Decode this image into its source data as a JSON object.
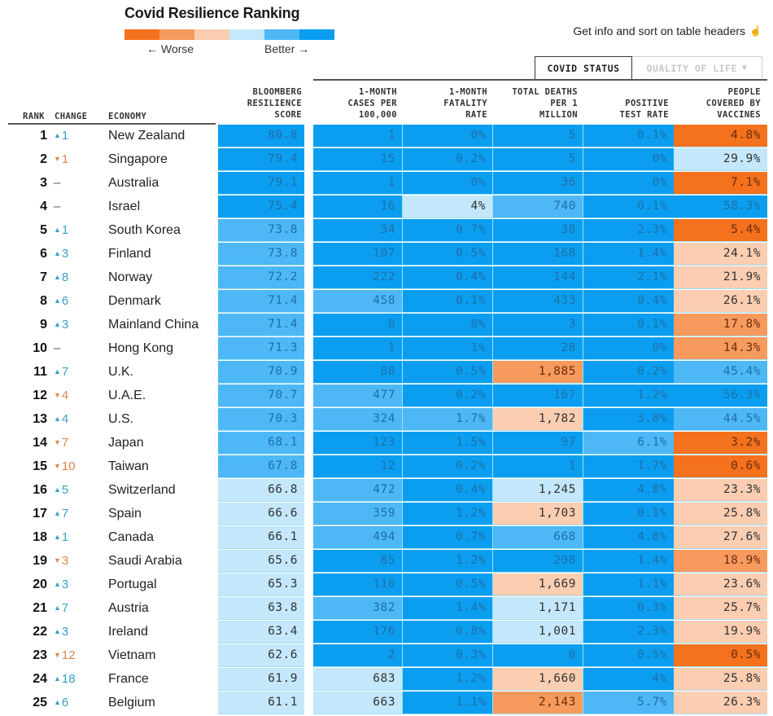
{
  "title": "Covid Resilience Ranking",
  "legend": {
    "colors": [
      "#f4711d",
      "#f79a5e",
      "#fbcdb1",
      "#c4e7fb",
      "#4db8f5",
      "#0b9ef0"
    ],
    "worse_label": "← Worse",
    "better_label": "Better →"
  },
  "info_hint": {
    "text": "Get info and sort on table headers",
    "icon": "pointer-hand-icon"
  },
  "tabs": [
    {
      "label": "COVID STATUS",
      "active": true
    },
    {
      "label": "QUALITY OF LIFE",
      "active": false,
      "icon": "caret-down-icon"
    }
  ],
  "columns": {
    "rank": "RANK",
    "change": "CHANGE",
    "economy": "ECONOMY",
    "score": [
      "BLOOMBERG",
      "RESILIENCE",
      "SCORE"
    ],
    "cases": [
      "1-MONTH",
      "CASES PER",
      "100,000"
    ],
    "fatality": [
      "1-MONTH",
      "FATALITY",
      "RATE"
    ],
    "deaths": [
      "TOTAL DEATHS",
      "PER 1",
      "MILLION"
    ],
    "positive": [
      "POSITIVE",
      "TEST RATE"
    ],
    "vaccines": [
      "PEOPLE",
      "COVERED BY",
      "VACCINES"
    ]
  },
  "palette": {
    "b1": "#0b9ef0",
    "b2": "#4db8f5",
    "b3": "#c4e7fb",
    "o3": "#fbcdb1",
    "o2": "#f79a5e",
    "o1": "#f4711d",
    "text_on_blue": "#1f6fa8",
    "text_on_light": "#333333",
    "text_on_orange": "#6b2c0a",
    "up": "#3aa0c8",
    "down": "#e0864a"
  },
  "rows": [
    {
      "rank": "1",
      "dir": "up",
      "change": "1",
      "economy": "New Zealand",
      "score": "80.8",
      "score_c": "b1",
      "cases": "1",
      "cases_c": "b1",
      "fatal": "0%",
      "fatal_c": "b1",
      "deaths": "5",
      "deaths_c": "b1",
      "pos": "0.1%",
      "pos_c": "b1",
      "vacc": "4.8%",
      "vacc_c": "o1"
    },
    {
      "rank": "2",
      "dir": "down",
      "change": "1",
      "economy": "Singapore",
      "score": "79.4",
      "score_c": "b1",
      "cases": "15",
      "cases_c": "b1",
      "fatal": "0.2%",
      "fatal_c": "b1",
      "deaths": "5",
      "deaths_c": "b1",
      "pos": "0%",
      "pos_c": "b1",
      "vacc": "29.9%",
      "vacc_c": "b3"
    },
    {
      "rank": "3",
      "dir": "flat",
      "change": "–",
      "economy": "Australia",
      "score": "79.1",
      "score_c": "b1",
      "cases": "1",
      "cases_c": "b1",
      "fatal": "0%",
      "fatal_c": "b1",
      "deaths": "36",
      "deaths_c": "b1",
      "pos": "0%",
      "pos_c": "b1",
      "vacc": "7.1%",
      "vacc_c": "o1"
    },
    {
      "rank": "4",
      "dir": "flat",
      "change": "–",
      "economy": "Israel",
      "score": "75.4",
      "score_c": "b1",
      "cases": "16",
      "cases_c": "b1",
      "fatal": "4%",
      "fatal_c": "b3",
      "deaths": "740",
      "deaths_c": "b2",
      "pos": "0.1%",
      "pos_c": "b1",
      "vacc": "58.3%",
      "vacc_c": "b1"
    },
    {
      "rank": "5",
      "dir": "up",
      "change": "1",
      "economy": "South Korea",
      "score": "73.8",
      "score_c": "b2",
      "cases": "34",
      "cases_c": "b1",
      "fatal": "0.7%",
      "fatal_c": "b1",
      "deaths": "38",
      "deaths_c": "b1",
      "pos": "2.3%",
      "pos_c": "b1",
      "vacc": "5.4%",
      "vacc_c": "o1"
    },
    {
      "rank": "6",
      "dir": "up",
      "change": "3",
      "economy": "Finland",
      "score": "73.8",
      "score_c": "b2",
      "cases": "107",
      "cases_c": "b1",
      "fatal": "0.5%",
      "fatal_c": "b1",
      "deaths": "168",
      "deaths_c": "b1",
      "pos": "1.4%",
      "pos_c": "b1",
      "vacc": "24.1%",
      "vacc_c": "o3"
    },
    {
      "rank": "7",
      "dir": "up",
      "change": "8",
      "economy": "Norway",
      "score": "72.2",
      "score_c": "b2",
      "cases": "222",
      "cases_c": "b1",
      "fatal": "0.4%",
      "fatal_c": "b1",
      "deaths": "144",
      "deaths_c": "b1",
      "pos": "2.1%",
      "pos_c": "b1",
      "vacc": "21.9%",
      "vacc_c": "o3"
    },
    {
      "rank": "8",
      "dir": "up",
      "change": "6",
      "economy": "Denmark",
      "score": "71.4",
      "score_c": "b2",
      "cases": "458",
      "cases_c": "b2",
      "fatal": "0.1%",
      "fatal_c": "b1",
      "deaths": "433",
      "deaths_c": "b1",
      "pos": "0.4%",
      "pos_c": "b1",
      "vacc": "26.1%",
      "vacc_c": "o3"
    },
    {
      "rank": "9",
      "dir": "up",
      "change": "3",
      "economy": "Mainland China",
      "score": "71.4",
      "score_c": "b2",
      "cases": "0",
      "cases_c": "b1",
      "fatal": "0%",
      "fatal_c": "b1",
      "deaths": "3",
      "deaths_c": "b1",
      "pos": "0.1%",
      "pos_c": "b1",
      "vacc": "17.8%",
      "vacc_c": "o2"
    },
    {
      "rank": "10",
      "dir": "flat",
      "change": "–",
      "economy": "Hong Kong",
      "score": "71.3",
      "score_c": "b2",
      "cases": "1",
      "cases_c": "b1",
      "fatal": "1%",
      "fatal_c": "b1",
      "deaths": "28",
      "deaths_c": "b1",
      "pos": "0%",
      "pos_c": "b1",
      "vacc": "14.3%",
      "vacc_c": "o2"
    },
    {
      "rank": "11",
      "dir": "up",
      "change": "7",
      "economy": "U.K.",
      "score": "70.9",
      "score_c": "b2",
      "cases": "88",
      "cases_c": "b1",
      "fatal": "0.5%",
      "fatal_c": "b1",
      "deaths": "1,885",
      "deaths_c": "o2",
      "pos": "0.2%",
      "pos_c": "b1",
      "vacc": "45.4%",
      "vacc_c": "b2"
    },
    {
      "rank": "12",
      "dir": "down",
      "change": "4",
      "economy": "U.A.E.",
      "score": "70.7",
      "score_c": "b2",
      "cases": "477",
      "cases_c": "b2",
      "fatal": "0.2%",
      "fatal_c": "b1",
      "deaths": "167",
      "deaths_c": "b1",
      "pos": "1.2%",
      "pos_c": "b1",
      "vacc": "56.3%",
      "vacc_c": "b1"
    },
    {
      "rank": "13",
      "dir": "up",
      "change": "4",
      "economy": "U.S.",
      "score": "70.3",
      "score_c": "b2",
      "cases": "324",
      "cases_c": "b2",
      "fatal": "1.7%",
      "fatal_c": "b2",
      "deaths": "1,782",
      "deaths_c": "o3",
      "pos": "3.8%",
      "pos_c": "b1",
      "vacc": "44.5%",
      "vacc_c": "b2"
    },
    {
      "rank": "14",
      "dir": "down",
      "change": "7",
      "economy": "Japan",
      "score": "68.1",
      "score_c": "b2",
      "cases": "123",
      "cases_c": "b1",
      "fatal": "1.5%",
      "fatal_c": "b1",
      "deaths": "97",
      "deaths_c": "b1",
      "pos": "6.1%",
      "pos_c": "b2",
      "vacc": "3.2%",
      "vacc_c": "o1"
    },
    {
      "rank": "15",
      "dir": "down",
      "change": "10",
      "economy": "Taiwan",
      "score": "67.8",
      "score_c": "b2",
      "cases": "12",
      "cases_c": "b1",
      "fatal": "0.2%",
      "fatal_c": "b1",
      "deaths": "1",
      "deaths_c": "b1",
      "pos": "1.7%",
      "pos_c": "b1",
      "vacc": "0.6%",
      "vacc_c": "o1"
    },
    {
      "rank": "16",
      "dir": "up",
      "change": "5",
      "economy": "Switzerland",
      "score": "66.8",
      "score_c": "b3",
      "cases": "472",
      "cases_c": "b2",
      "fatal": "0.4%",
      "fatal_c": "b1",
      "deaths": "1,245",
      "deaths_c": "b3",
      "pos": "4.8%",
      "pos_c": "b1",
      "vacc": "23.3%",
      "vacc_c": "o3"
    },
    {
      "rank": "17",
      "dir": "up",
      "change": "7",
      "economy": "Spain",
      "score": "66.6",
      "score_c": "b3",
      "cases": "359",
      "cases_c": "b2",
      "fatal": "1.2%",
      "fatal_c": "b1",
      "deaths": "1,703",
      "deaths_c": "o3",
      "pos": "0.1%",
      "pos_c": "b1",
      "vacc": "25.8%",
      "vacc_c": "o3"
    },
    {
      "rank": "18",
      "dir": "up",
      "change": "1",
      "economy": "Canada",
      "score": "66.1",
      "score_c": "b3",
      "cases": "494",
      "cases_c": "b2",
      "fatal": "0.7%",
      "fatal_c": "b1",
      "deaths": "668",
      "deaths_c": "b2",
      "pos": "4.8%",
      "pos_c": "b1",
      "vacc": "27.6%",
      "vacc_c": "o3"
    },
    {
      "rank": "19",
      "dir": "down",
      "change": "3",
      "economy": "Saudi Arabia",
      "score": "65.6",
      "score_c": "b3",
      "cases": "85",
      "cases_c": "b1",
      "fatal": "1.2%",
      "fatal_c": "b1",
      "deaths": "208",
      "deaths_c": "b1",
      "pos": "1.4%",
      "pos_c": "b1",
      "vacc": "18.9%",
      "vacc_c": "o2"
    },
    {
      "rank": "20",
      "dir": "up",
      "change": "3",
      "economy": "Portugal",
      "score": "65.3",
      "score_c": "b3",
      "cases": "110",
      "cases_c": "b1",
      "fatal": "0.5%",
      "fatal_c": "b1",
      "deaths": "1,669",
      "deaths_c": "o3",
      "pos": "1.1%",
      "pos_c": "b1",
      "vacc": "23.6%",
      "vacc_c": "o3"
    },
    {
      "rank": "21",
      "dir": "up",
      "change": "7",
      "economy": "Austria",
      "score": "63.8",
      "score_c": "b3",
      "cases": "382",
      "cases_c": "b2",
      "fatal": "1.4%",
      "fatal_c": "b1",
      "deaths": "1,171",
      "deaths_c": "b3",
      "pos": "0.3%",
      "pos_c": "b1",
      "vacc": "25.7%",
      "vacc_c": "o3"
    },
    {
      "rank": "22",
      "dir": "up",
      "change": "3",
      "economy": "Ireland",
      "score": "63.4",
      "score_c": "b3",
      "cases": "176",
      "cases_c": "b1",
      "fatal": "0.8%",
      "fatal_c": "b1",
      "deaths": "1,001",
      "deaths_c": "b3",
      "pos": "2.3%",
      "pos_c": "b1",
      "vacc": "19.9%",
      "vacc_c": "o3"
    },
    {
      "rank": "23",
      "dir": "down",
      "change": "12",
      "economy": "Vietnam",
      "score": "62.6",
      "score_c": "b3",
      "cases": "2",
      "cases_c": "b1",
      "fatal": "0.3%",
      "fatal_c": "b1",
      "deaths": "0",
      "deaths_c": "b1",
      "pos": "0.5%",
      "pos_c": "b1",
      "vacc": "0.5%",
      "vacc_c": "o1"
    },
    {
      "rank": "24",
      "dir": "up",
      "change": "18",
      "economy": "France",
      "score": "61.9",
      "score_c": "b3",
      "cases": "683",
      "cases_c": "b3",
      "fatal": "1.2%",
      "fatal_c": "b1",
      "deaths": "1,660",
      "deaths_c": "o3",
      "pos": "4%",
      "pos_c": "b1",
      "vacc": "25.8%",
      "vacc_c": "o3"
    },
    {
      "rank": "25",
      "dir": "up",
      "change": "6",
      "economy": "Belgium",
      "score": "61.1",
      "score_c": "b3",
      "cases": "663",
      "cases_c": "b3",
      "fatal": "1.1%",
      "fatal_c": "b1",
      "deaths": "2,143",
      "deaths_c": "o2",
      "pos": "5.7%",
      "pos_c": "b2",
      "vacc": "26.3%",
      "vacc_c": "o3"
    }
  ]
}
